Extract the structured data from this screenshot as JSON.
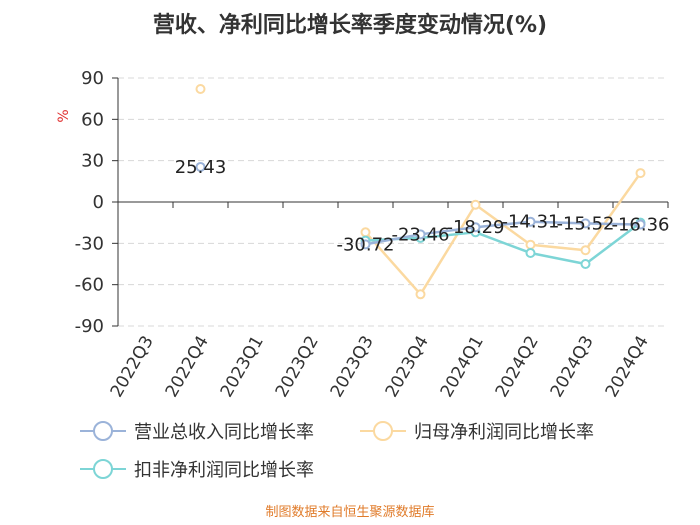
{
  "chart_data": {
    "type": "line",
    "title": "营收、净利同比增长率季度变动情况(%)",
    "ylabel": "%",
    "xlabel": "",
    "ylim": [
      -90,
      90
    ],
    "yticks": [
      90,
      60,
      30,
      0,
      -30,
      -60,
      -90
    ],
    "categories": [
      "2022Q3",
      "2022Q4",
      "2023Q1",
      "2023Q2",
      "2023Q3",
      "2023Q4",
      "2024Q1",
      "2024Q2",
      "2024Q3",
      "2024Q4"
    ],
    "grid": true,
    "legend_position": "bottom",
    "series": [
      {
        "name": "营业总收入同比增长率",
        "color": "#9bb3d9",
        "values": [
          null,
          25.43,
          null,
          null,
          -30.72,
          -23.46,
          -18.29,
          -14.31,
          -15.52,
          -16.36
        ],
        "labels": [
          "",
          "25.43",
          "",
          "",
          "-30.72",
          "-23.46",
          "-18.29",
          "-14.31",
          "-15.52",
          "-16.36"
        ]
      },
      {
        "name": "归母净利润同比增长率",
        "color": "#fbd9a0",
        "values": [
          null,
          82,
          null,
          null,
          -22,
          -67,
          -2,
          -31,
          -35,
          21
        ]
      },
      {
        "name": "扣非净利润同比增长率",
        "color": "#7dd5d6",
        "values": [
          null,
          null,
          null,
          null,
          -28,
          -26,
          -22,
          -37,
          -45,
          -15
        ]
      }
    ]
  },
  "source": "制图数据来自恒生聚源数据库"
}
